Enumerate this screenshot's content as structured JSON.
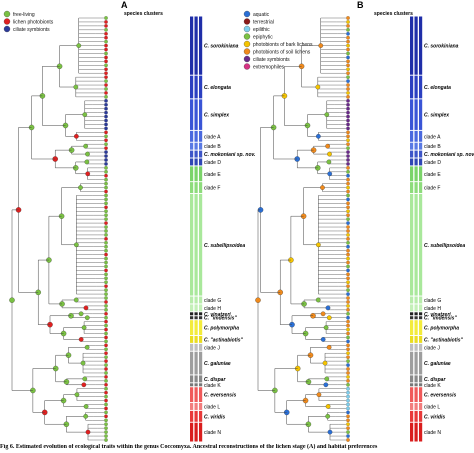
{
  "panels": [
    {
      "letter": "A",
      "header": "species clusters",
      "legend": [
        {
          "label": "free-living",
          "color": "#7ac143"
        },
        {
          "label": "lichen photobionts",
          "color": "#e02020"
        },
        {
          "label": "ciliate symbionts",
          "color": "#2b3a9a"
        }
      ],
      "species_clusters": [
        {
          "label": "C. sorokiniana"
        },
        {
          "label": "C. elongata"
        },
        {
          "label": "C. simplex"
        },
        {
          "label": "clade A"
        },
        {
          "label": "clade B"
        },
        {
          "label": "C. mokoniani sp. nov."
        },
        {
          "label": "clade D"
        },
        {
          "label": "clade E"
        },
        {
          "label": "clade F"
        },
        {
          "label": "C. subellipsoidea"
        },
        {
          "label": "clade G"
        },
        {
          "label": "clade H"
        },
        {
          "label": "C. vinatzeri"
        },
        {
          "label": "C. \"imdensis\""
        },
        {
          "label": "C. polymorpha"
        },
        {
          "label": "C. \"actinabiotis\""
        },
        {
          "label": "clade J"
        },
        {
          "label": "C. galuniae"
        },
        {
          "label": "C. dispar"
        },
        {
          "label": "clade K"
        },
        {
          "label": "C. eversensis"
        },
        {
          "label": "clade L"
        },
        {
          "label": "C. viridis"
        },
        {
          "label": "clade N"
        }
      ]
    },
    {
      "letter": "B",
      "header": "species clusters",
      "legend": [
        {
          "label": "aquatic",
          "color": "#2a6fd6"
        },
        {
          "label": "terrestrial",
          "color": "#8b1a1a"
        },
        {
          "label": "epilithic",
          "color": "#7fd0ef"
        },
        {
          "label": "epiphytic",
          "color": "#7ac143"
        },
        {
          "label": "photobionts of bark lichens",
          "color": "#f5c400"
        },
        {
          "label": "photobionts of soil lichens",
          "color": "#f08a1c"
        },
        {
          "label": "ciliate symbionts",
          "color": "#6a2a8a"
        },
        {
          "label": "extremophiles",
          "color": "#d63384"
        }
      ],
      "species_clusters": [
        {
          "label": "C. sorokiniana"
        },
        {
          "label": "C. elongata"
        },
        {
          "label": "C. simplex"
        },
        {
          "label": "clade A"
        },
        {
          "label": "clade B"
        },
        {
          "label": "C. mokoniani sp. nov."
        },
        {
          "label": "clade D"
        },
        {
          "label": "clade E"
        },
        {
          "label": "clade F"
        },
        {
          "label": "C. subellipsoidea"
        },
        {
          "label": "clade G"
        },
        {
          "label": "clade H"
        },
        {
          "label": "C. vinatzeri"
        },
        {
          "label": "C. \"imdensis\""
        },
        {
          "label": "C. polymorpha"
        },
        {
          "label": "C. \"actinabiotis\""
        },
        {
          "label": "clade J"
        },
        {
          "label": "C. galuniae"
        },
        {
          "label": "C. dispar"
        },
        {
          "label": "clade K"
        },
        {
          "label": "C. eversensis"
        },
        {
          "label": "clade L"
        },
        {
          "label": "C. viridis"
        },
        {
          "label": "clade N"
        }
      ]
    }
  ],
  "caption": "Fig 6. Estimated evolution of ecological traits within the genus Coccomyxa. Ancestral reconstructions of the lichen stage (A) and habitat preferences"
}
